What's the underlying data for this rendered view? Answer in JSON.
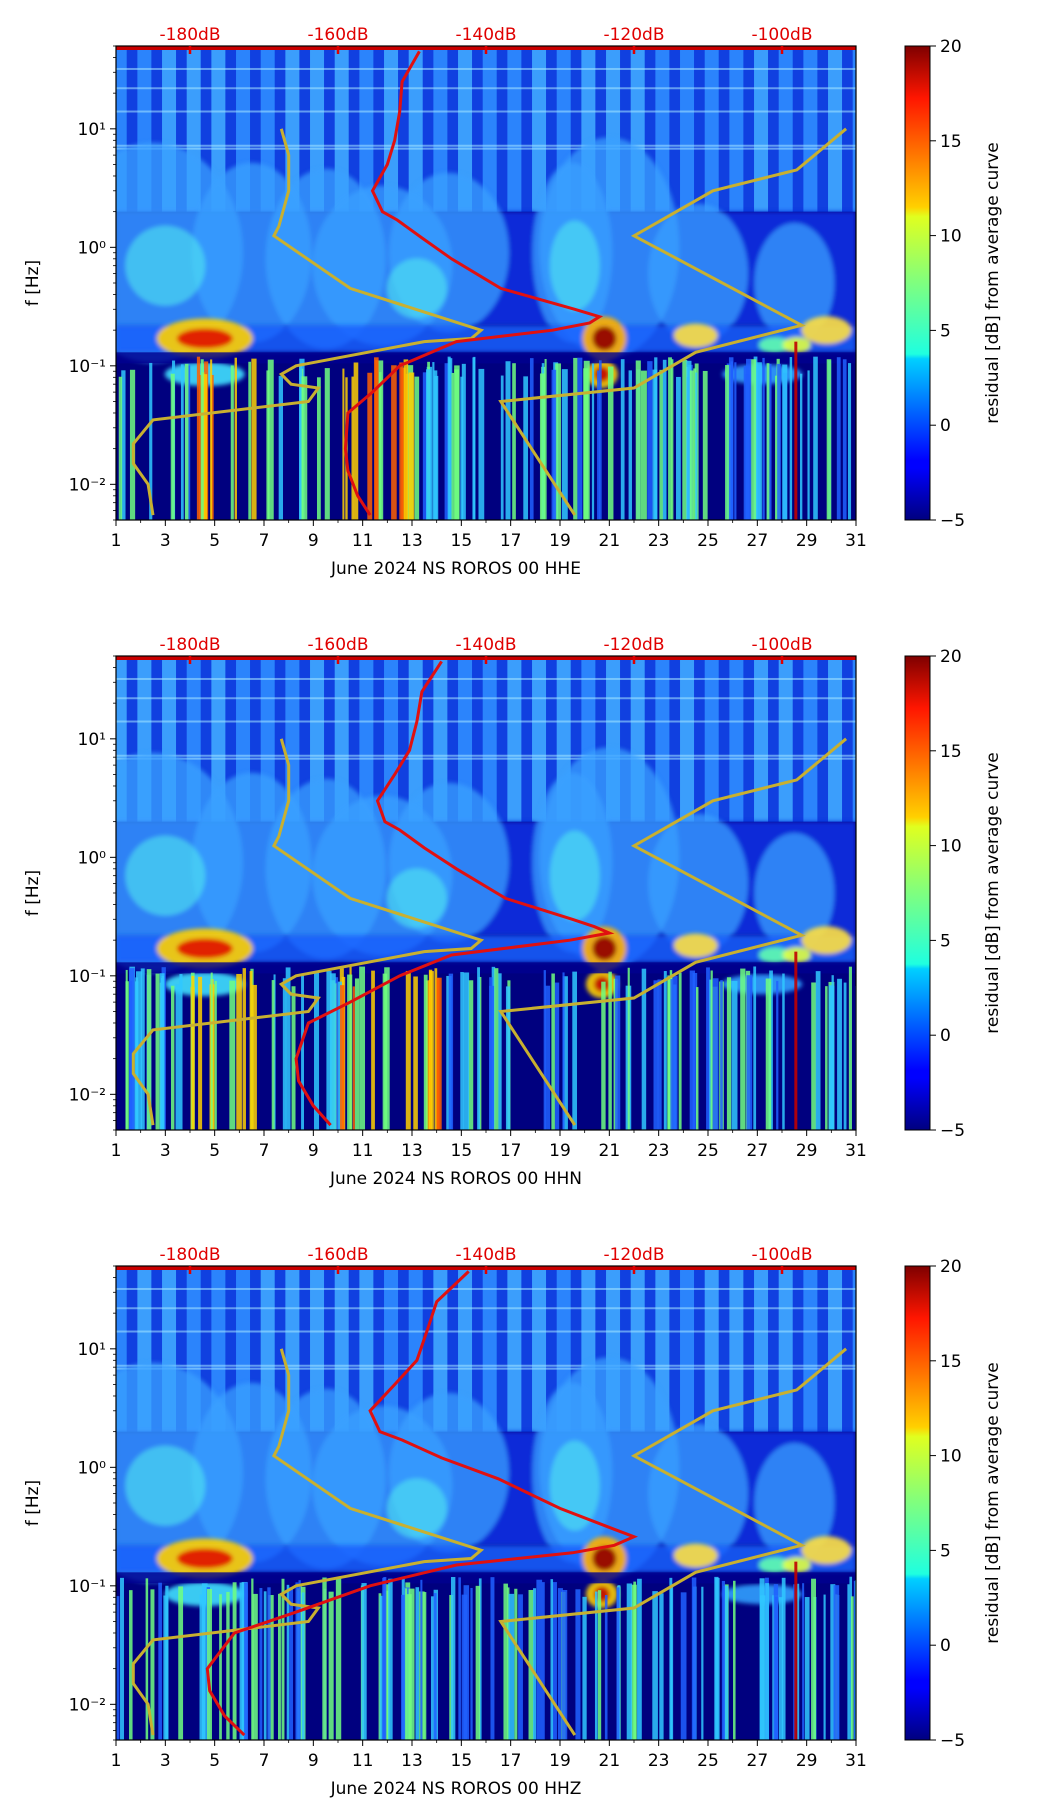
{
  "colors": {
    "average_curve": "#e01010",
    "model_curves": "#c8b030",
    "top_labels": "#e00000",
    "background_low": "#00007f"
  },
  "chart_data": [
    {
      "type": "heatmap",
      "title": "",
      "xlabel": "June 2024 NS ROROS 00 HHE",
      "ylabel": "f [Hz]",
      "x_range": [
        1,
        31
      ],
      "x_ticks": [
        "1",
        "3",
        "5",
        "7",
        "9",
        "11",
        "13",
        "15",
        "17",
        "19",
        "21",
        "23",
        "25",
        "27",
        "29",
        "31"
      ],
      "y_scale": "log",
      "y_range": [
        0.005,
        50
      ],
      "y_ticks": [
        "10⁻²",
        "10⁻¹",
        "10⁰",
        "10¹"
      ],
      "top_axis_ticks": [
        "-180dB",
        "-160dB",
        "-140dB",
        "-120dB",
        "-100dB"
      ],
      "colorbar": {
        "label": "residual [dB] from average curve",
        "min": -5,
        "max": 20,
        "ticks": [
          "−5",
          "0",
          "5",
          "10",
          "15",
          "20"
        ]
      },
      "average_curve": {
        "x": [
          13.3,
          12.6,
          12.5,
          12.3,
          12.0,
          11.4,
          11.8,
          12.4,
          13.4,
          14.6,
          16.6,
          19.6,
          20.6,
          20.2,
          18.7,
          14.8,
          12.5,
          11.4,
          10.4,
          10.3,
          10.4,
          10.8,
          11.3
        ],
        "y": [
          45,
          25,
          14,
          8,
          5,
          3,
          2,
          1.7,
          1.2,
          0.8,
          0.45,
          0.3,
          0.26,
          0.23,
          0.2,
          0.16,
          0.1,
          0.06,
          0.04,
          0.02,
          0.013,
          0.008,
          0.0055
        ]
      }
    },
    {
      "type": "heatmap",
      "title": "",
      "xlabel": "June 2024 NS ROROS 00 HHN",
      "ylabel": "f [Hz]",
      "x_range": [
        1,
        31
      ],
      "x_ticks": [
        "1",
        "3",
        "5",
        "7",
        "9",
        "11",
        "13",
        "15",
        "17",
        "19",
        "21",
        "23",
        "25",
        "27",
        "29",
        "31"
      ],
      "y_scale": "log",
      "y_range": [
        0.005,
        50
      ],
      "y_ticks": [
        "10⁻²",
        "10⁻¹",
        "10⁰",
        "10¹"
      ],
      "top_axis_ticks": [
        "-180dB",
        "-160dB",
        "-140dB",
        "-120dB",
        "-100dB"
      ],
      "colorbar": {
        "label": "residual [dB] from average curve",
        "min": -5,
        "max": 20,
        "ticks": [
          "−5",
          "0",
          "5",
          "10",
          "15",
          "20"
        ]
      },
      "average_curve": {
        "x": [
          14.2,
          13.4,
          13.2,
          12.9,
          12.3,
          11.6,
          11.9,
          12.5,
          13.5,
          14.8,
          16.8,
          19.5,
          20.4,
          21.0,
          19.4,
          14.6,
          12.5,
          10.5,
          8.8,
          8.3,
          8.4,
          9.0,
          9.7
        ],
        "y": [
          45,
          25,
          14,
          8,
          5,
          3,
          2,
          1.7,
          1.2,
          0.8,
          0.45,
          0.3,
          0.26,
          0.23,
          0.2,
          0.15,
          0.1,
          0.06,
          0.04,
          0.02,
          0.013,
          0.008,
          0.0055
        ]
      }
    },
    {
      "type": "heatmap",
      "title": "",
      "xlabel": "June 2024 NS ROROS 00 HHZ",
      "ylabel": "f [Hz]",
      "x_range": [
        1,
        31
      ],
      "x_ticks": [
        "1",
        "3",
        "5",
        "7",
        "9",
        "11",
        "13",
        "15",
        "17",
        "19",
        "21",
        "23",
        "25",
        "27",
        "29",
        "31"
      ],
      "y_scale": "log",
      "y_range": [
        0.005,
        50
      ],
      "y_ticks": [
        "10⁻²",
        "10⁻¹",
        "10⁰",
        "10¹"
      ],
      "top_axis_ticks": [
        "-180dB",
        "-160dB",
        "-140dB",
        "-120dB",
        "-100dB"
      ],
      "colorbar": {
        "label": "residual [dB] from average curve",
        "min": -5,
        "max": 20,
        "ticks": [
          "−5",
          "0",
          "5",
          "10",
          "15",
          "20"
        ]
      },
      "average_curve": {
        "x": [
          15.3,
          14.0,
          13.6,
          13.2,
          12.3,
          11.3,
          11.7,
          12.6,
          14.2,
          16.5,
          19.0,
          21.2,
          22.0,
          21.2,
          19.5,
          14.8,
          11.3,
          8.3,
          5.8,
          4.7,
          4.8,
          5.4,
          6.2
        ],
        "y": [
          45,
          25,
          14,
          8,
          5,
          3,
          2,
          1.7,
          1.2,
          0.8,
          0.45,
          0.3,
          0.26,
          0.22,
          0.19,
          0.15,
          0.1,
          0.06,
          0.04,
          0.02,
          0.013,
          0.008,
          0.0055
        ]
      }
    }
  ],
  "model_curves": {
    "nlnm": {
      "x": [
        7.7,
        8.0,
        8.0,
        7.6,
        7.4,
        10.5,
        15.8,
        15.4,
        13.5,
        8.3,
        7.7,
        8.1,
        9.2,
        8.8,
        2.5,
        1.7,
        1.7,
        2.3,
        2.5
      ],
      "y": [
        10,
        6,
        3,
        1.5,
        1.25,
        0.45,
        0.2,
        0.17,
        0.16,
        0.1,
        0.085,
        0.07,
        0.065,
        0.05,
        0.035,
        0.022,
        0.015,
        0.01,
        0.0055
      ]
    },
    "nhnm": {
      "x": [
        30.6,
        28.6,
        25.2,
        22.0,
        28.8,
        24.5,
        22.0,
        16.6,
        19.6
      ],
      "y": [
        10,
        4.5,
        3,
        1.25,
        0.22,
        0.13,
        0.065,
        0.05,
        0.0055
      ]
    }
  }
}
